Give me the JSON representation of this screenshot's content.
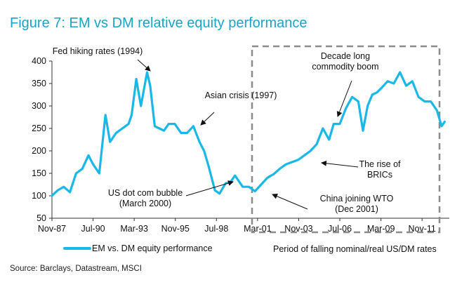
{
  "figure_title": "Figure 7: EM vs DM relative equity performance",
  "source": "Source: Barclays, Datastream, MSCI",
  "colors": {
    "title": "#1aa3c9",
    "line": "#1ab8e8",
    "box": "#8c8c8c"
  },
  "chart_data": {
    "type": "line",
    "title": "Figure 7: EM vs DM relative equity performance",
    "xlabel": "",
    "ylabel": "",
    "ylim": [
      50,
      400
    ],
    "yticks": [
      50,
      100,
      150,
      200,
      250,
      300,
      350,
      400
    ],
    "xlim": [
      1987.833,
      2013.6
    ],
    "xticks": [
      {
        "label": "Nov-87",
        "t": 1987.833
      },
      {
        "label": "Jul-90",
        "t": 1990.5
      },
      {
        "label": "Mar-93",
        "t": 1993.167
      },
      {
        "label": "Nov-95",
        "t": 1995.833
      },
      {
        "label": "Jul-98",
        "t": 1998.5
      },
      {
        "label": "Mar-01",
        "t": 2001.167
      },
      {
        "label": "Nov-03",
        "t": 2003.833
      },
      {
        "label": "Jul-06",
        "t": 2006.5
      },
      {
        "label": "Mar-09",
        "t": 2009.167
      },
      {
        "label": "Nov-11",
        "t": 2011.833
      }
    ],
    "grid": false,
    "legend_position": "bottom-left",
    "series": [
      {
        "name": "EM vs. DM equity performance",
        "x": [
          1987.83,
          1988.2,
          1988.6,
          1989.0,
          1989.4,
          1989.8,
          1990.2,
          1990.5,
          1990.9,
          1991.3,
          1991.6,
          1992.0,
          1992.4,
          1992.8,
          1993.0,
          1993.3,
          1993.6,
          1994.0,
          1994.2,
          1994.5,
          1994.8,
          1995.1,
          1995.4,
          1995.8,
          1996.2,
          1996.6,
          1997.0,
          1997.4,
          1997.7,
          1998.0,
          1998.4,
          1998.7,
          1999.1,
          1999.4,
          1999.7,
          2000.0,
          2000.2,
          2000.6,
          2001.0,
          2001.4,
          2001.8,
          2002.2,
          2002.6,
          2003.0,
          2003.4,
          2003.8,
          2004.2,
          2004.6,
          2005.0,
          2005.4,
          2005.8,
          2006.1,
          2006.5,
          2006.9,
          2007.3,
          2007.7,
          2008.0,
          2008.3,
          2008.6,
          2008.9,
          2009.2,
          2009.6,
          2010.0,
          2010.4,
          2010.8,
          2011.2,
          2011.6,
          2012.0,
          2012.4,
          2012.8,
          2013.1,
          2013.3
        ],
        "y": [
          100,
          112,
          120,
          108,
          150,
          160,
          190,
          170,
          150,
          280,
          220,
          240,
          250,
          260,
          280,
          360,
          300,
          375,
          345,
          255,
          250,
          245,
          260,
          260,
          240,
          240,
          255,
          220,
          200,
          165,
          112,
          105,
          128,
          130,
          145,
          130,
          120,
          120,
          110,
          125,
          140,
          148,
          160,
          170,
          175,
          180,
          190,
          200,
          215,
          250,
          225,
          260,
          260,
          295,
          320,
          310,
          245,
          300,
          325,
          330,
          340,
          355,
          350,
          375,
          345,
          355,
          320,
          310,
          310,
          290,
          255,
          265
        ]
      }
    ],
    "annotations": [
      {
        "lines": [
          "Fed hiking rates (1994)"
        ]
      },
      {
        "lines": [
          "Asian crisis (1997)"
        ]
      },
      {
        "lines": [
          "US dot com bubble",
          "(March 2000)"
        ]
      },
      {
        "lines": [
          "Decade long",
          "commodity boom"
        ]
      },
      {
        "lines": [
          "The rise of",
          "BRICs"
        ]
      },
      {
        "lines": [
          "China joining WTO",
          "(Dec 2001)"
        ]
      },
      {
        "lines": [
          "Period of falling nominal/real US/DM rates"
        ]
      }
    ]
  }
}
